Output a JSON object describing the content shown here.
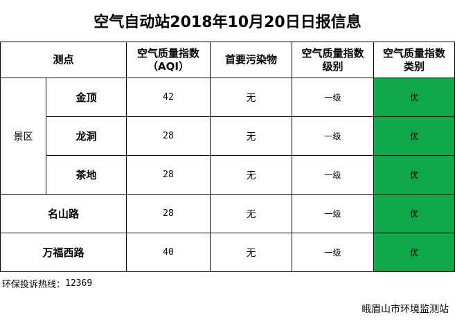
{
  "title": "空气自动站2018年10月20日日报信息",
  "table": {
    "headers": {
      "site": "测点",
      "aqi_line1": "空气质量指数",
      "aqi_line2": "（AQI）",
      "pollutant": "首要污染物",
      "level_line1": "空气质量指数",
      "level_line2": "级别",
      "category_line1": "空气质量指数",
      "category_line2": "类别"
    },
    "group_label": "景区",
    "rows": [
      {
        "site": "金顶",
        "aqi": "42",
        "pollutant": "无",
        "level": "一级",
        "category": "优"
      },
      {
        "site": "龙洞",
        "aqi": "28",
        "pollutant": "无",
        "level": "一级",
        "category": "优"
      },
      {
        "site": "茶地",
        "aqi": "28",
        "pollutant": "无",
        "level": "一级",
        "category": "优"
      },
      {
        "site": "名山路",
        "aqi": "28",
        "pollutant": "无",
        "level": "一级",
        "category": "优"
      },
      {
        "site": "万福西路",
        "aqi": "40",
        "pollutant": "无",
        "level": "一级",
        "category": "优"
      }
    ]
  },
  "hotline": {
    "label": "环保投诉热线：",
    "number": "12369"
  },
  "footer": "峨眉山市环境监测站",
  "colors": {
    "good": "#10a84a"
  }
}
